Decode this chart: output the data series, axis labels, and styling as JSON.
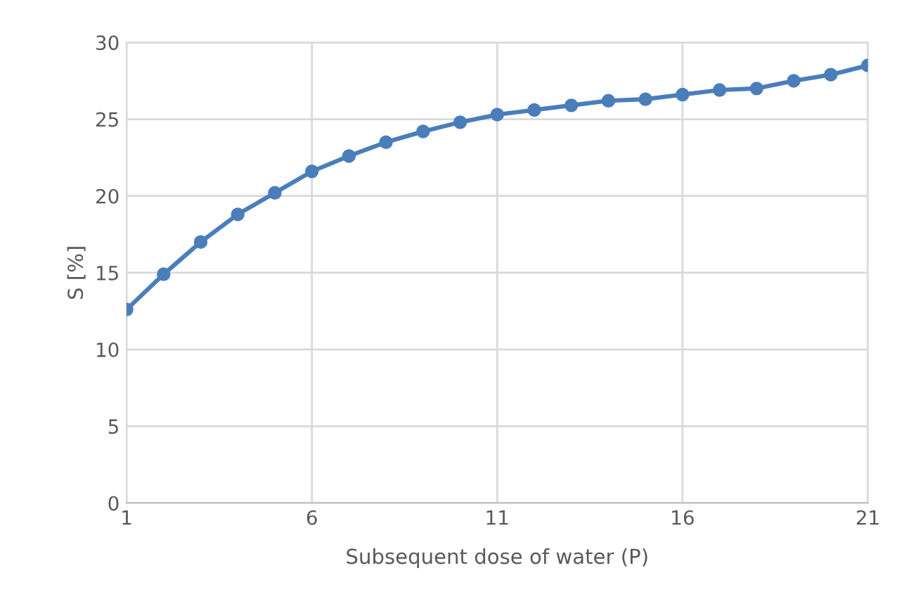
{
  "chart_data": {
    "type": "line",
    "xlabel": "Subsequent dose of water (P)",
    "ylabel": "S [%]",
    "x": [
      1,
      2,
      3,
      4,
      5,
      6,
      7,
      8,
      9,
      10,
      11,
      12,
      13,
      14,
      15,
      16,
      17,
      18,
      19,
      20,
      21
    ],
    "series": [
      {
        "color": "#4a7ebb",
        "values": [
          12.6,
          14.9,
          17.0,
          18.8,
          20.2,
          21.6,
          22.6,
          23.5,
          24.2,
          24.8,
          25.3,
          25.6,
          25.9,
          26.2,
          26.3,
          26.6,
          26.9,
          27.0,
          27.5,
          27.9,
          28.5
        ]
      }
    ],
    "xlim": [
      1,
      21
    ],
    "xticks": [
      1,
      6,
      11,
      16,
      21
    ],
    "ylim": [
      0,
      30
    ],
    "yticks": [
      0,
      5,
      10,
      15,
      20,
      25,
      30
    ],
    "grid": true,
    "marker": "circle",
    "line_style": "solid"
  }
}
